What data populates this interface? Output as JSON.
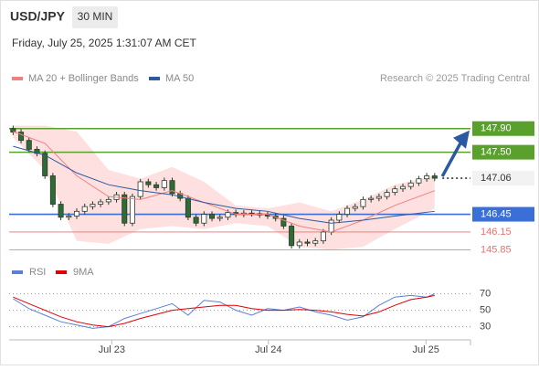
{
  "header": {
    "symbol": "USD/JPY",
    "interval": "30 MIN",
    "timestamp": "Friday, July 25, 2025 1:31:07 AM CET"
  },
  "chart_data": [
    {
      "type": "candlestick",
      "credit": "Research © 2025 Trading Central",
      "xlim": [
        -0.5,
        57.5
      ],
      "ylim": [
        145.67,
        148.53
      ],
      "xticks": [
        {
          "value": 12.4,
          "label": "Jul 23"
        },
        {
          "value": 32.1,
          "label": "Jul 24"
        },
        {
          "value": 51.9,
          "label": "Jul 25"
        }
      ],
      "up_color": "#ffffff",
      "down_color": "#2f6b34",
      "band_color": "#fde0df",
      "open": [
        147.9,
        147.84,
        147.7,
        147.55,
        147.48,
        147.1,
        146.62,
        146.4,
        146.42,
        146.5,
        146.58,
        146.62,
        146.66,
        146.7,
        146.78,
        146.3,
        146.75,
        147.0,
        146.95,
        146.9,
        147.02,
        146.8,
        146.72,
        146.4,
        146.3,
        146.45,
        146.38,
        146.4,
        146.48,
        146.45,
        146.47,
        146.46,
        146.44,
        146.42,
        146.38,
        146.25,
        145.92,
        145.98,
        145.96,
        146.0,
        146.15,
        146.35,
        146.45,
        146.55,
        146.58,
        146.7,
        146.72,
        146.75,
        146.82,
        146.88,
        146.92,
        146.98,
        147.05,
        147.1
      ],
      "high": [
        147.95,
        147.89,
        147.75,
        147.6,
        147.53,
        147.15,
        146.67,
        146.47,
        146.55,
        146.63,
        146.67,
        146.71,
        146.75,
        146.83,
        146.83,
        146.8,
        147.05,
        147.05,
        147.0,
        147.07,
        147.07,
        146.85,
        146.77,
        146.45,
        146.5,
        146.5,
        146.45,
        146.53,
        146.53,
        146.52,
        146.52,
        146.51,
        146.49,
        146.47,
        146.43,
        146.3,
        146.03,
        146.03,
        146.05,
        146.2,
        146.4,
        146.5,
        146.6,
        146.63,
        146.75,
        146.77,
        146.8,
        146.87,
        146.93,
        146.97,
        147.03,
        147.1,
        147.15,
        147.15
      ],
      "low": [
        147.79,
        147.65,
        147.5,
        147.43,
        147.05,
        146.57,
        146.35,
        146.35,
        146.37,
        146.45,
        146.53,
        146.57,
        146.61,
        146.65,
        146.25,
        146.25,
        146.7,
        146.9,
        146.85,
        146.85,
        146.75,
        146.67,
        146.35,
        146.25,
        146.25,
        146.33,
        146.33,
        146.35,
        146.4,
        146.4,
        146.41,
        146.39,
        146.37,
        146.33,
        146.2,
        145.87,
        145.87,
        145.91,
        145.91,
        145.95,
        146.1,
        146.3,
        146.4,
        146.5,
        146.53,
        146.65,
        146.67,
        146.7,
        146.77,
        146.83,
        146.87,
        146.93,
        147.0,
        147.01
      ],
      "close": [
        147.84,
        147.7,
        147.55,
        147.48,
        147.1,
        146.62,
        146.4,
        146.42,
        146.5,
        146.58,
        146.62,
        146.66,
        146.7,
        146.78,
        146.3,
        146.75,
        147.0,
        146.95,
        146.9,
        147.02,
        146.8,
        146.72,
        146.4,
        146.3,
        146.45,
        146.38,
        146.4,
        146.48,
        146.45,
        146.47,
        146.46,
        146.44,
        146.42,
        146.38,
        146.25,
        145.92,
        145.98,
        145.96,
        146.0,
        146.15,
        146.35,
        146.45,
        146.55,
        146.58,
        146.7,
        146.72,
        146.75,
        146.82,
        146.88,
        146.92,
        146.98,
        147.05,
        147.1,
        147.06
      ],
      "series": [
        {
          "name": "MA 20 + Bollinger Bands",
          "color": "#f08080",
          "x": [
            0,
            4,
            8,
            12,
            16,
            20,
            24,
            28,
            32,
            36,
            40,
            44,
            48,
            53
          ],
          "values": [
            147.85,
            147.65,
            147.1,
            146.75,
            146.7,
            146.85,
            146.65,
            146.45,
            146.45,
            146.25,
            146.15,
            146.35,
            146.6,
            146.85
          ],
          "upper": [
            147.95,
            147.95,
            147.85,
            147.2,
            147.05,
            147.25,
            147.0,
            146.6,
            146.55,
            146.65,
            146.5,
            146.7,
            146.95,
            147.1
          ],
          "lower": [
            147.75,
            147.2,
            146.0,
            145.95,
            146.2,
            146.25,
            146.2,
            146.3,
            146.25,
            145.9,
            145.85,
            145.9,
            146.2,
            146.55
          ]
        },
        {
          "name": "MA 50",
          "color": "#2c5aa0",
          "x": [
            0,
            4,
            8,
            12,
            16,
            20,
            24,
            28,
            32,
            36,
            40,
            44,
            48,
            53
          ],
          "values": [
            147.6,
            147.45,
            147.15,
            146.95,
            146.85,
            146.78,
            146.65,
            146.55,
            146.5,
            146.38,
            146.3,
            146.35,
            146.42,
            146.5
          ]
        }
      ],
      "levels": [
        {
          "value": 147.9,
          "label": "147.90",
          "color": "#5aa02c",
          "style": "solid",
          "label_style": "box"
        },
        {
          "value": 147.5,
          "label": "147.50",
          "color": "#5aa02c",
          "style": "solid",
          "label_style": "box"
        },
        {
          "value": 147.06,
          "label": "147.06",
          "color": "#333333",
          "style": "dotted",
          "label_style": "plain"
        },
        {
          "value": 146.45,
          "label": "146.45",
          "color": "#3a6fd8",
          "style": "solid",
          "label_style": "box"
        },
        {
          "value": 146.15,
          "label": "146.15",
          "color": "#e57373",
          "style": "solid",
          "label_style": "text"
        },
        {
          "value": 145.85,
          "label": "145.85",
          "color": "#e57373",
          "style": "solid",
          "label_style": "text"
        }
      ],
      "target_color": "#2c5aa0"
    },
    {
      "type": "line",
      "xlim": [
        -0.5,
        57.5
      ],
      "ylim": [
        14,
        94
      ],
      "yticks": [
        30,
        50,
        70
      ],
      "grid": true,
      "series": [
        {
          "name": "RSI",
          "color": "#5b7fd6",
          "x": [
            0,
            2,
            4,
            6,
            8,
            10,
            12,
            14,
            16,
            18,
            20,
            22,
            24,
            26,
            28,
            30,
            32,
            34,
            36,
            38,
            40,
            42,
            44,
            46,
            48,
            50,
            52,
            53
          ],
          "values": [
            64,
            52,
            44,
            36,
            32,
            28,
            30,
            40,
            46,
            52,
            58,
            44,
            62,
            60,
            50,
            44,
            52,
            50,
            54,
            48,
            44,
            38,
            42,
            56,
            66,
            68,
            66,
            70
          ]
        },
        {
          "name": "9MA",
          "color": "#e00000",
          "x": [
            0,
            2,
            4,
            6,
            8,
            10,
            12,
            14,
            16,
            18,
            20,
            22,
            24,
            26,
            28,
            30,
            32,
            34,
            36,
            38,
            40,
            42,
            44,
            46,
            48,
            50,
            52,
            53
          ],
          "values": [
            66,
            58,
            50,
            42,
            36,
            32,
            30,
            34,
            40,
            45,
            50,
            52,
            54,
            56,
            56,
            52,
            50,
            50,
            51,
            50,
            48,
            45,
            43,
            48,
            56,
            63,
            66,
            68
          ]
        }
      ]
    }
  ]
}
